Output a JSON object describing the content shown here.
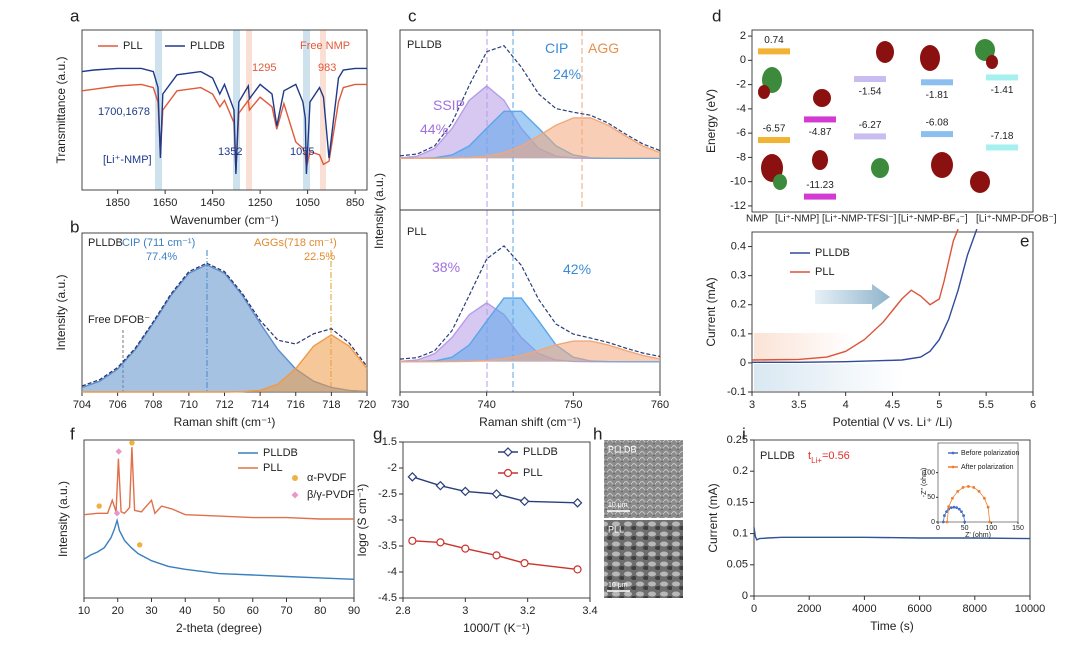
{
  "chart_data": [
    {
      "panel": "a",
      "type": "line",
      "xlabel": "Wavenumber (cm⁻¹)",
      "ylabel": "Transmittance (a.u.)",
      "xlim": [
        2000,
        800
      ],
      "xticks": [
        1850,
        1650,
        1450,
        1250,
        1050,
        850
      ],
      "ylim": [
        0,
        100
      ],
      "x": [
        2000,
        1950,
        1850,
        1750,
        1700,
        1680,
        1670,
        1660,
        1600,
        1500,
        1450,
        1420,
        1400,
        1360,
        1352,
        1340,
        1300,
        1295,
        1250,
        1200,
        1180,
        1150,
        1100,
        1070,
        1060,
        1055,
        1040,
        1000,
        983,
        960,
        920,
        900,
        850,
        800
      ],
      "series": [
        {
          "name": "PLL",
          "color": "#e05a3a",
          "values": [
            62,
            63,
            65,
            66,
            64,
            55,
            22,
            50,
            62,
            64,
            60,
            52,
            56,
            42,
            12,
            48,
            56,
            50,
            58,
            52,
            38,
            54,
            30,
            26,
            22,
            14,
            24,
            22,
            16,
            18,
            55,
            64,
            66,
            66
          ]
        },
        {
          "name": "PLLDB",
          "color": "#1f3a8a",
          "values": [
            74,
            75,
            76,
            76,
            74,
            64,
            20,
            60,
            72,
            74,
            70,
            60,
            66,
            50,
            10,
            55,
            65,
            57,
            66,
            60,
            40,
            62,
            66,
            55,
            45,
            10,
            55,
            64,
            58,
            20,
            70,
            75,
            76,
            76
          ]
        }
      ],
      "annotations": [
        {
          "text": "Free NMP",
          "color": "#e05a3a"
        },
        {
          "text": "1295",
          "color": "#e05a3a"
        },
        {
          "text": "983",
          "color": "#e05a3a"
        },
        {
          "text": "1700,1678",
          "color": "#1f3a8a"
        },
        {
          "text": "[Li⁺-NMP]",
          "color": "#1f3a8a"
        },
        {
          "text": "1352",
          "color": "#1f3a8a"
        },
        {
          "text": "1055",
          "color": "#1f3a8a"
        }
      ]
    },
    {
      "panel": "b",
      "type": "line",
      "xlabel": "Raman shift (cm⁻¹)",
      "ylabel": "Intensity (a.u.)",
      "xlim": [
        704,
        720
      ],
      "xticks": [
        704,
        706,
        708,
        710,
        712,
        714,
        716,
        718,
        720
      ],
      "ylim": [
        0,
        100
      ],
      "x": [
        704,
        705,
        706,
        707,
        708,
        709,
        710,
        711,
        712,
        713,
        714,
        715,
        716,
        717,
        718,
        719,
        720
      ],
      "series": [
        {
          "color": "#5b8fcc",
          "fill": true,
          "values": [
            2.8,
            6.8,
            14.4,
            26.7,
            43.2,
            60.8,
            74.7,
            80,
            74.7,
            60.8,
            43.2,
            26.7,
            14.4,
            6.8,
            2.8,
            1.0,
            0.3
          ]
        },
        {
          "color": "#ef9a45",
          "fill": true,
          "values": [
            0,
            0,
            0,
            0,
            0,
            0,
            0,
            0,
            0,
            0.2,
            1,
            4.9,
            14.8,
            28.8,
            36,
            28.8,
            14.8
          ]
        },
        {
          "color": "#2a2f6a",
          "dash": true,
          "values": [
            3.8,
            7.8,
            15.4,
            27.7,
            44.2,
            61.8,
            75.7,
            81,
            75.7,
            62.0,
            45.0,
            32.6,
            30.2,
            36.6,
            39.8,
            30.8,
            16.1
          ]
        }
      ],
      "annotations": [
        {
          "text": "PLLDB",
          "color": "#222"
        },
        {
          "text": "CIP (711 cm⁻¹)",
          "color": "#3b7fc4"
        },
        {
          "text": "77.4%",
          "color": "#3b7fc4"
        },
        {
          "text": "AGGs(718 cm⁻¹)",
          "color": "#e08a30"
        },
        {
          "text": "22.5%",
          "color": "#e08a30"
        },
        {
          "text": "Free DFOB⁻",
          "color": "#222"
        }
      ]
    },
    {
      "panel": "c",
      "type": "line",
      "xlabel": "Raman shift (cm⁻¹)",
      "ylabel": "Intensity (a.u.)",
      "xlim": [
        730,
        760
      ],
      "xticks": [
        730,
        740,
        750,
        760
      ],
      "x": [
        730,
        732,
        734,
        736,
        738,
        740,
        742,
        744,
        746,
        748,
        750,
        752,
        754,
        756,
        758,
        760
      ],
      "subplots": [
        {
          "label": "PLLDB",
          "ylim": [
            -50,
            124
          ],
          "series": [
            {
              "color": "#b79be8",
              "fill": true,
              "values": [
                0.3,
                2.0,
                9.5,
                28.8,
                56,
                70,
                56,
                28.8,
                9.5,
                2.0,
                0.3,
                0,
                0,
                0,
                0,
                0
              ]
            },
            {
              "color": "#5aa6ea",
              "fill": true,
              "values": [
                0,
                0.1,
                0.5,
                3.2,
                12,
                29,
                45.4,
                45.4,
                29,
                12,
                3.2,
                0.5,
                0.1,
                0,
                0,
                0
              ]
            },
            {
              "color": "#f2a77a",
              "fill": true,
              "values": [
                0,
                0,
                0,
                0.2,
                0.6,
                2.0,
                5.4,
                11.9,
                21.6,
                32,
                39,
                39,
                32,
                21.6,
                11.9,
                5.4
              ]
            },
            {
              "color": "#2a3f7a",
              "dash": true,
              "values": [
                2.3,
                4.1,
                12,
                34.2,
                70.6,
                103,
                108.8,
                88.1,
                62.1,
                48,
                44.5,
                41.5,
                34.1,
                23.6,
                13.9,
                7.4
              ]
            }
          ],
          "annotations": [
            {
              "text": "SSIP",
              "color": "#a070e0"
            },
            {
              "text": "44%",
              "color": "#a070e0"
            },
            {
              "text": "CIP",
              "color": "#3a8ad8"
            },
            {
              "text": "24%",
              "color": "#3a8ad8"
            },
            {
              "text": "AGG",
              "color": "#e8904a"
            }
          ]
        },
        {
          "label": "PLL",
          "ylim": [
            -26,
            130
          ],
          "series": [
            {
              "color": "#b79be8",
              "fill": true,
              "values": [
                0.2,
                1.4,
                6.8,
                20.7,
                40.3,
                50.4,
                40.3,
                20.7,
                6.8,
                1.4,
                0.2,
                0,
                0,
                0,
                0,
                0
              ]
            },
            {
              "color": "#5aa6ea",
              "fill": true,
              "values": [
                0,
                0.1,
                0.6,
                3.8,
                14.4,
                34.8,
                54.5,
                54.5,
                34.8,
                14.4,
                3.8,
                0.6,
                0.1,
                0,
                0,
                0
              ]
            },
            {
              "color": "#f2a77a",
              "fill": true,
              "values": [
                0,
                0,
                0,
                0.1,
                0.3,
                0.9,
                2.4,
                5.4,
                9.7,
                14.4,
                17.6,
                17.6,
                14.4,
                9.7,
                5.4,
                2.4
              ]
            },
            {
              "color": "#2a3f7a",
              "dash": true,
              "values": [
                2.2,
                3.5,
                9.4,
                26.6,
                57,
                88.1,
                99.2,
                82.6,
                53.3,
                32.2,
                23.6,
                20.2,
                16.5,
                11.7,
                7.4,
                4.4
              ]
            }
          ],
          "annotations": [
            {
              "text": "38%",
              "color": "#a070e0"
            },
            {
              "text": "42%",
              "color": "#3a8ad8"
            }
          ]
        }
      ]
    },
    {
      "panel": "d",
      "type": "energy_level",
      "ylabel": "Energy (eV)",
      "categories": [
        "NMP",
        "[Li⁺-NMP]",
        "[Li⁺-NMP-TFSI⁻]",
        "[Li⁺-NMP-BF₄⁻]",
        "[Li⁺-NMP-DFOB⁻]"
      ],
      "colors": [
        "#f2b233",
        "#d23ad2",
        "#c9bcf0",
        "#8cbff0",
        "#a6f0f0"
      ],
      "ylim": [
        -12.5,
        2.5
      ],
      "yticks": [
        2,
        0,
        -2,
        -4,
        -6,
        -8,
        -10,
        -12
      ],
      "levels": [
        {
          "values": [
            0.74,
            -4.87,
            -1.54,
            -1.81,
            -1.41
          ]
        },
        {
          "values": [
            -6.57,
            -11.23,
            -6.27,
            -6.08,
            -7.18
          ]
        }
      ]
    },
    {
      "panel": "e",
      "type": "line",
      "xlabel": "Potential (V vs. Li⁺ /Li)",
      "ylabel": "Current (mA)",
      "xlim": [
        3,
        6
      ],
      "xticks": [
        3,
        3.5,
        4,
        4.5,
        5,
        5.5,
        6
      ],
      "ylim": [
        -0.1,
        0.45
      ],
      "yticks": [
        -0.1,
        0,
        0.1,
        0.2,
        0.3,
        0.4
      ],
      "series": [
        {
          "name": "PLLDB",
          "color": "#2f4b9a",
          "x": [
            3,
            3.5,
            4,
            4.4,
            4.6,
            4.8,
            4.9,
            5.0,
            5.1,
            5.2,
            5.3,
            5.4
          ],
          "values": [
            0.002,
            0.002,
            0.004,
            0.008,
            0.01,
            0.02,
            0.04,
            0.08,
            0.15,
            0.25,
            0.37,
            0.46
          ]
        },
        {
          "name": "PLL",
          "color": "#d9553a",
          "x": [
            3,
            3.5,
            3.8,
            4.0,
            4.2,
            4.4,
            4.5,
            4.6,
            4.7,
            4.8,
            4.9,
            5.0,
            5.05,
            5.1,
            5.15,
            5.2
          ],
          "values": [
            0.01,
            0.012,
            0.02,
            0.04,
            0.08,
            0.14,
            0.18,
            0.22,
            0.25,
            0.23,
            0.2,
            0.22,
            0.28,
            0.35,
            0.42,
            0.46
          ]
        }
      ]
    },
    {
      "panel": "f",
      "type": "line",
      "xlabel": "2-theta (degree)",
      "ylabel": "Intensity (a.u.)",
      "xlim": [
        10,
        90
      ],
      "xticks": [
        10,
        20,
        30,
        40,
        50,
        60,
        70,
        80,
        90
      ],
      "ylim": [
        0,
        110
      ],
      "series": [
        {
          "name": "PLLDB",
          "color": "#3a7fc0",
          "x": [
            10,
            12,
            14,
            16,
            18,
            19,
            19.8,
            20.5,
            22,
            24,
            26,
            30,
            35,
            40,
            50,
            60,
            70,
            80,
            90
          ],
          "values": [
            27,
            30,
            32,
            35,
            42,
            48,
            54,
            47,
            40,
            35,
            31,
            26,
            22,
            20,
            17,
            16,
            15,
            14,
            13
          ]
        },
        {
          "name": "PLL",
          "color": "#e0704a",
          "x": [
            10,
            14,
            17,
            18.4,
            19.5,
            20.2,
            21,
            22,
            23.5,
            24.2,
            25,
            27,
            30,
            31,
            33,
            36,
            40,
            50,
            60,
            70,
            80,
            90
          ],
          "values": [
            58,
            59,
            59,
            68,
            60,
            97,
            60,
            59,
            63,
            105,
            61,
            60,
            68,
            59,
            64,
            62,
            58,
            57,
            56,
            56,
            55,
            55
          ]
        }
      ],
      "phases": [
        {
          "name": "α-PVDF",
          "color": "#f2b040",
          "marker": "circle"
        },
        {
          "name": "β/γ-PVDF",
          "color": "#e898c8",
          "marker": "diamond"
        }
      ],
      "peak_marks": [
        {
          "phase": 0,
          "x": 14.5,
          "y": 64
        },
        {
          "phase": 1,
          "x": 20.3,
          "y": 102
        },
        {
          "phase": 0,
          "x": 24.2,
          "y": 108
        },
        {
          "phase": 1,
          "x": 19.8,
          "y": 59
        },
        {
          "phase": 0,
          "x": 26.5,
          "y": 37
        }
      ]
    },
    {
      "panel": "g",
      "type": "line",
      "xlabel": "1000/T (K⁻¹)",
      "ylabel": "logσ (S cm⁻¹)",
      "xlim": [
        2.8,
        3.4
      ],
      "xticks": [
        2.8,
        3,
        3.2,
        3.4
      ],
      "ylim": [
        -4.5,
        -1.5
      ],
      "yticks": [
        -1.5,
        -2,
        -2.5,
        -3,
        -3.5,
        -4,
        -4.5
      ],
      "x": [
        2.83,
        2.92,
        3.0,
        3.1,
        3.19,
        3.36
      ],
      "series": [
        {
          "name": "PLLDB",
          "color": "#2a3f7a",
          "marker": "diamond",
          "values": [
            -2.17,
            -2.34,
            -2.45,
            -2.5,
            -2.64,
            -2.67
          ]
        },
        {
          "name": "PLL",
          "color": "#c8342c",
          "marker": "circle",
          "values": [
            -3.4,
            -3.43,
            -3.55,
            -3.68,
            -3.83,
            -3.95
          ]
        }
      ]
    },
    {
      "panel": "i",
      "type": "line",
      "xlabel": "Time (s)",
      "ylabel": "Current (mA)",
      "xlim": [
        0,
        10000
      ],
      "xticks": [
        0,
        2000,
        4000,
        6000,
        8000,
        10000
      ],
      "ylim": [
        0,
        0.25
      ],
      "yticks": [
        0,
        0.05,
        0.1,
        0.15,
        0.2,
        0.25
      ],
      "series": [
        {
          "color": "#2f5597",
          "x": [
            0,
            50,
            100,
            200,
            500,
            1000,
            2000,
            4000,
            6000,
            8000,
            10000
          ],
          "values": [
            0.11,
            0.095,
            0.09,
            0.092,
            0.093,
            0.094,
            0.094,
            0.094,
            0.093,
            0.093,
            0.092
          ]
        }
      ],
      "annotations": [
        {
          "text": "PLLDB",
          "color": "#222"
        },
        {
          "text": "t",
          "sub": "Li+",
          "tail": "=0.56",
          "color": "#e03030"
        }
      ],
      "inset": {
        "xlabel": "Z' (ohm)",
        "ylabel": "-Z'' (ohm)",
        "xlim": [
          0,
          150
        ],
        "xticks": [
          0,
          50,
          100,
          150
        ],
        "ylim": [
          0,
          160
        ],
        "yticks": [
          0,
          50,
          100
        ],
        "series": [
          {
            "name": "Before polarization",
            "color": "#4472c4",
            "marker": "dot",
            "x": [
              10,
              12,
              16,
              20,
              25,
              30,
              35,
              40,
              44,
              48,
              50
            ],
            "values": [
              0,
              13,
              21,
              26,
              29,
              30,
              29,
              26,
              21,
              13,
              0
            ]
          },
          {
            "name": "After polarization",
            "color": "#ed7d31",
            "marker": "dot",
            "x": [
              17,
              20,
              27,
              37,
              47,
              57,
              67,
              77,
              87,
              94,
              97
            ],
            "values": [
              0,
              31,
              48,
              62,
              70,
              72,
              70,
              62,
              48,
              30,
              0
            ]
          }
        ]
      }
    }
  ],
  "sem_panel": {
    "panel": "h",
    "images": [
      {
        "label": "PLLDB",
        "scale": "10 μm"
      },
      {
        "label": "PLL",
        "scale": "10 μm"
      }
    ]
  }
}
